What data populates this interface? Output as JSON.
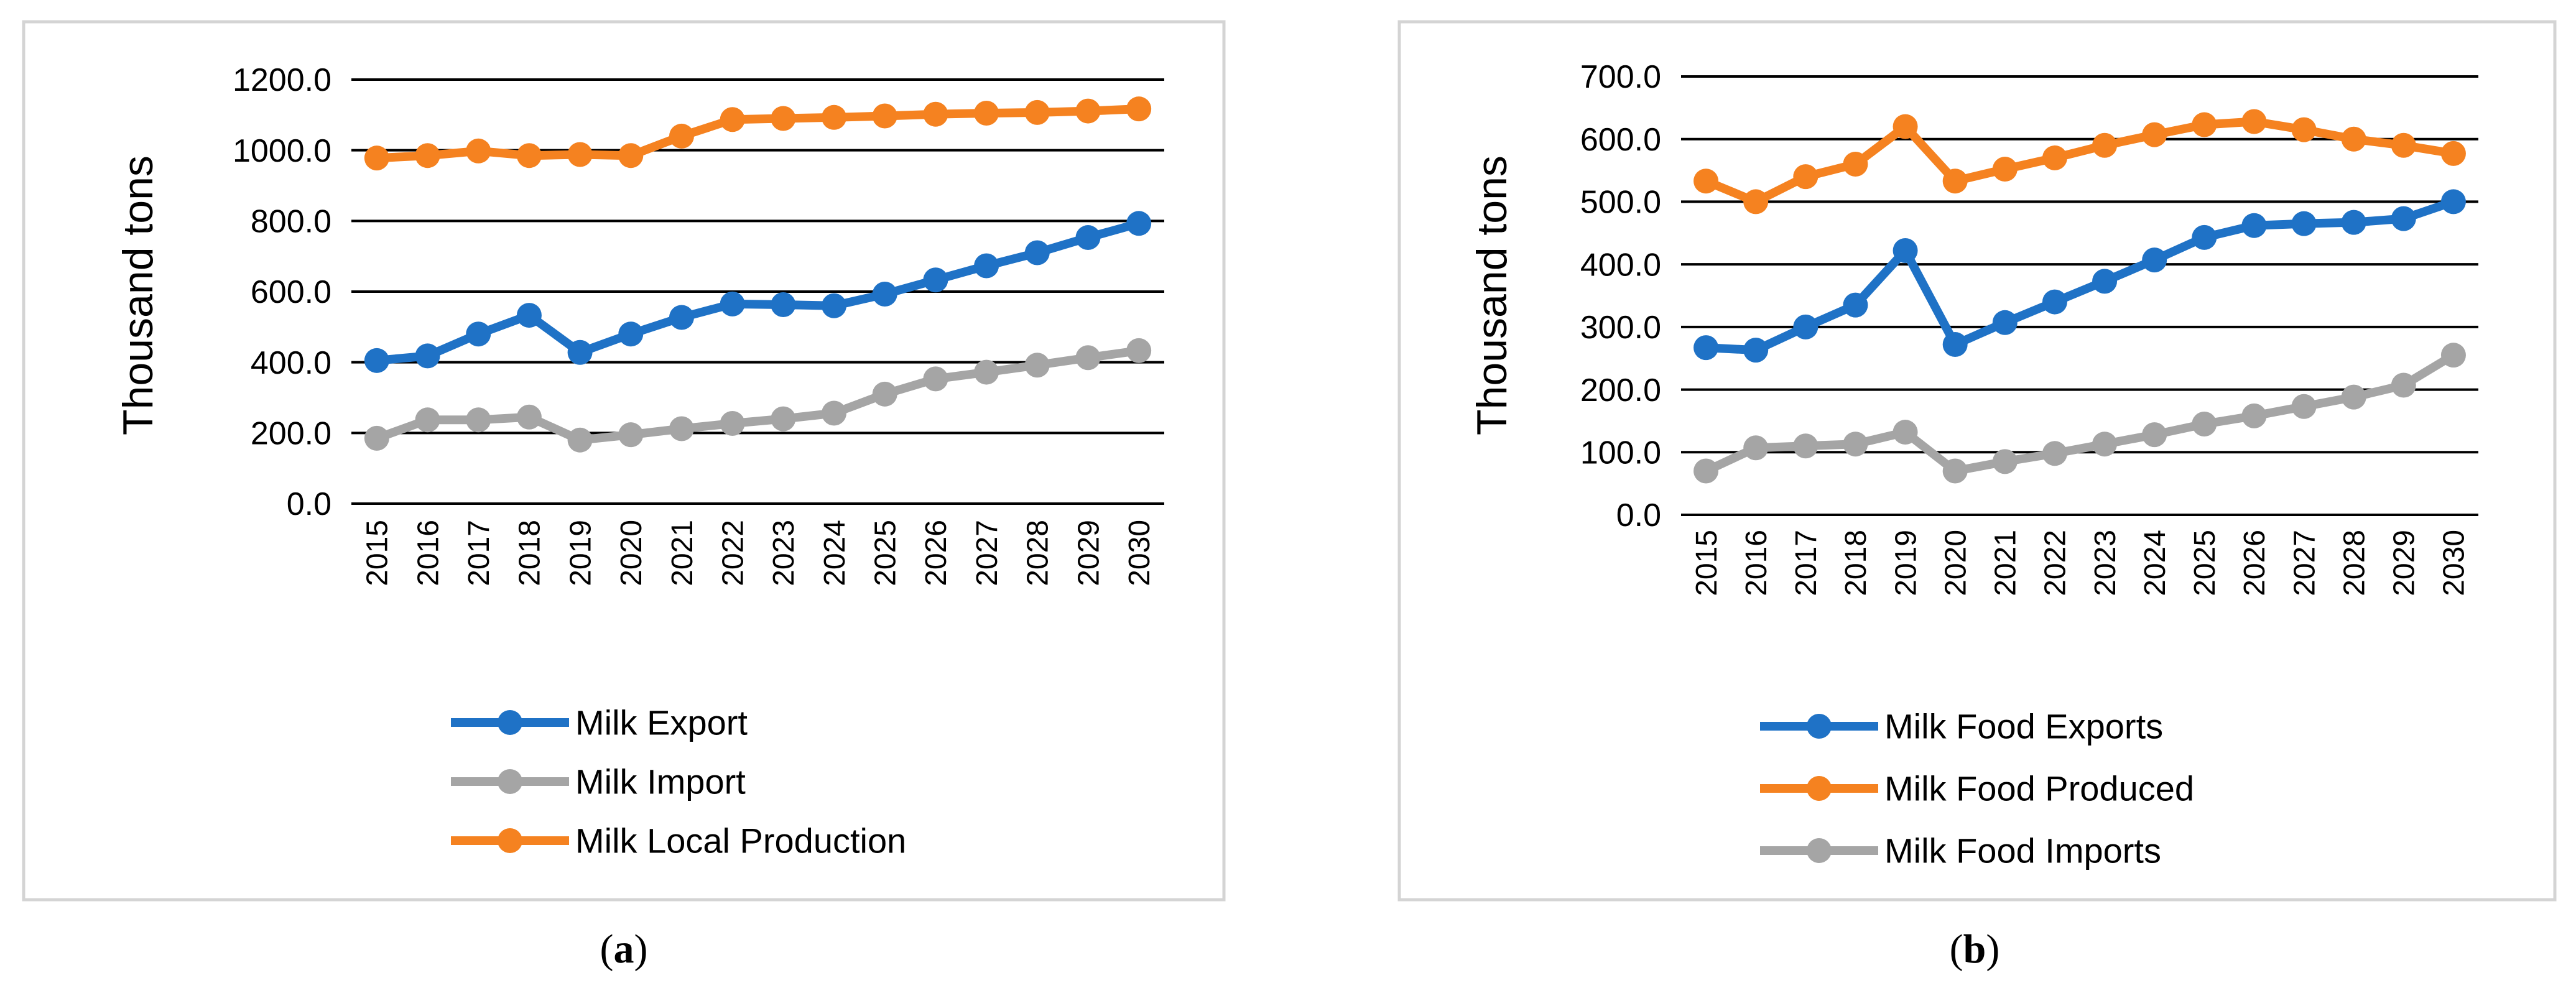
{
  "colors": {
    "blue": "#1f72c6",
    "orange": "#f58220",
    "gray": "#a5a5a5",
    "grid": "#000000",
    "frame": "#d4d4d4"
  },
  "chart_data": [
    {
      "type": "line",
      "caption_letter": "a",
      "title": "",
      "xlabel": "",
      "ylabel": "Thousand tons",
      "ylim": [
        0,
        1200
      ],
      "yticks": [
        "0.0",
        "200.0",
        "400.0",
        "600.0",
        "800.0",
        "1000.0",
        "1200.0"
      ],
      "categories": [
        "2015",
        "2016",
        "2017",
        "2018",
        "2019",
        "2020",
        "2021",
        "2022",
        "2023",
        "2024",
        "2025",
        "2026",
        "2027",
        "2028",
        "2029",
        "2030"
      ],
      "legend_position": "bottom",
      "series": [
        {
          "name": "Milk Export",
          "color": "#1f72c6",
          "values": [
            405,
            418,
            480,
            533,
            428,
            480,
            527,
            565,
            563,
            560,
            593,
            633,
            673,
            710,
            753,
            793
          ]
        },
        {
          "name": "Milk Import",
          "color": "#a5a5a5",
          "values": [
            185,
            237,
            237,
            245,
            180,
            195,
            212,
            227,
            240,
            256,
            310,
            353,
            372,
            392,
            413,
            433
          ]
        },
        {
          "name": "Milk Local Production",
          "color": "#f58220",
          "values": [
            978,
            985,
            998,
            985,
            988,
            985,
            1040,
            1087,
            1090,
            1093,
            1097,
            1102,
            1105,
            1107,
            1111,
            1117
          ]
        }
      ]
    },
    {
      "type": "line",
      "caption_letter": "b",
      "title": "",
      "xlabel": "",
      "ylabel": "Thousand tons",
      "ylim": [
        0,
        700
      ],
      "yticks": [
        "0.0",
        "100.0",
        "200.0",
        "300.0",
        "400.0",
        "500.0",
        "600.0",
        "700.0"
      ],
      "categories": [
        "2015",
        "2016",
        "2017",
        "2018",
        "2019",
        "2020",
        "2021",
        "2022",
        "2023",
        "2024",
        "2025",
        "2026",
        "2027",
        "2028",
        "2029",
        "2030"
      ],
      "legend_position": "bottom",
      "series": [
        {
          "name": "Milk Food Exports",
          "color": "#1f72c6",
          "values": [
            267,
            263,
            300,
            335,
            422,
            272,
            307,
            340,
            373,
            407,
            443,
            462,
            465,
            467,
            473,
            500
          ]
        },
        {
          "name": "Milk Food Produced",
          "color": "#f58220",
          "values": [
            533,
            500,
            540,
            560,
            620,
            533,
            552,
            570,
            590,
            607,
            623,
            628,
            615,
            600,
            590,
            577
          ]
        },
        {
          "name": "Milk Food Imports",
          "color": "#a5a5a5",
          "values": [
            70,
            107,
            110,
            113,
            132,
            70,
            85,
            98,
            113,
            128,
            145,
            158,
            173,
            188,
            207,
            255
          ]
        }
      ]
    }
  ]
}
